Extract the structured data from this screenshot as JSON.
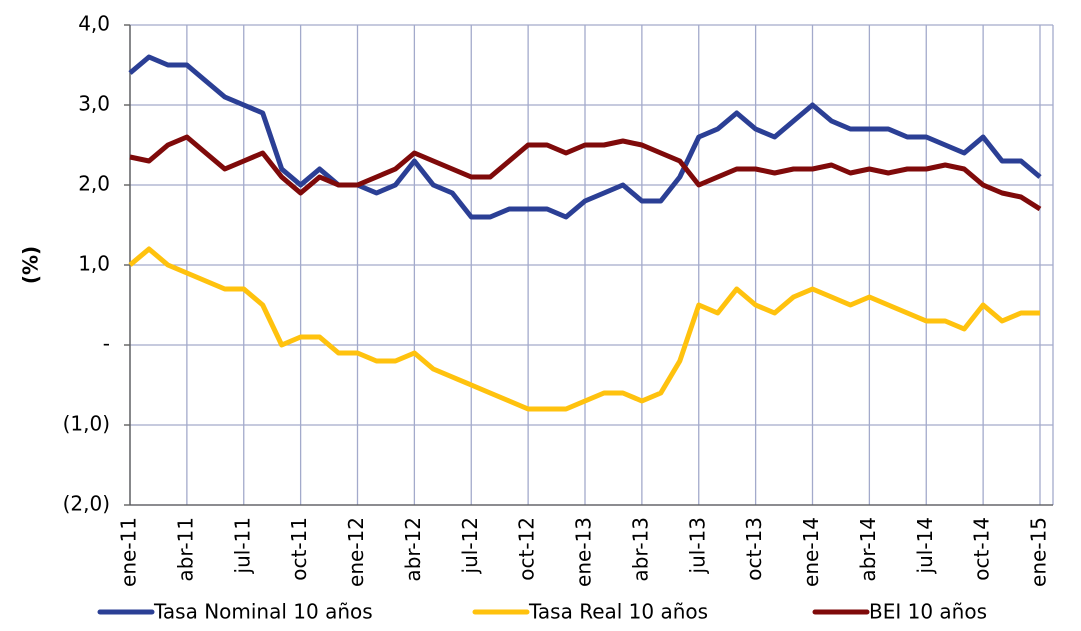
{
  "chart_data": {
    "type": "line",
    "y_label": "(%)",
    "categories": [
      "ene-11",
      null,
      null,
      "abr-11",
      null,
      null,
      "jul-11",
      null,
      null,
      "oct-11",
      null,
      null,
      "ene-12",
      null,
      null,
      "abr-12",
      null,
      null,
      "jul-12",
      null,
      null,
      "oct-12",
      null,
      null,
      "ene-13",
      null,
      null,
      "abr-13",
      null,
      null,
      "jul-13",
      null,
      null,
      "oct-13",
      null,
      null,
      "ene-14",
      null,
      null,
      "abr-14",
      null,
      null,
      "jul-14",
      null,
      null,
      "oct-14",
      null,
      null,
      "ene-15"
    ],
    "series": [
      {
        "name": "Tasa Nominal 10 años",
        "color": "#2b3f95",
        "values": [
          3.4,
          3.6,
          3.5,
          3.5,
          3.3,
          3.1,
          3.0,
          2.9,
          2.2,
          2.0,
          2.2,
          2.0,
          2.0,
          1.9,
          2.0,
          2.3,
          2.0,
          1.9,
          1.6,
          1.6,
          1.7,
          1.7,
          1.7,
          1.6,
          1.8,
          1.9,
          2.0,
          1.8,
          1.8,
          2.1,
          2.6,
          2.7,
          2.9,
          2.7,
          2.6,
          2.8,
          3.0,
          2.8,
          2.7,
          2.7,
          2.7,
          2.6,
          2.6,
          2.5,
          2.4,
          2.6,
          2.3,
          2.3,
          2.1
        ]
      },
      {
        "name": "Tasa Real 10 años",
        "color": "#ffc20e",
        "values": [
          1.0,
          1.2,
          1.0,
          0.9,
          0.8,
          0.7,
          0.7,
          0.5,
          0.0,
          0.1,
          0.1,
          -0.1,
          -0.1,
          -0.2,
          -0.2,
          -0.1,
          -0.3,
          -0.4,
          -0.5,
          -0.6,
          -0.7,
          -0.8,
          -0.8,
          -0.8,
          -0.7,
          -0.6,
          -0.6,
          -0.7,
          -0.6,
          -0.2,
          0.5,
          0.4,
          0.7,
          0.5,
          0.4,
          0.6,
          0.7,
          0.6,
          0.5,
          0.6,
          0.5,
          0.4,
          0.3,
          0.3,
          0.2,
          0.5,
          0.3,
          0.4,
          0.4
        ]
      },
      {
        "name": "BEI 10 años",
        "color": "#7f0a0a",
        "values": [
          2.35,
          2.3,
          2.5,
          2.6,
          2.4,
          2.2,
          2.3,
          2.4,
          2.1,
          1.9,
          2.1,
          2.0,
          2.0,
          2.1,
          2.2,
          2.4,
          2.3,
          2.2,
          2.1,
          2.1,
          2.3,
          2.5,
          2.5,
          2.4,
          2.5,
          2.5,
          2.55,
          2.5,
          2.4,
          2.3,
          2.0,
          2.1,
          2.2,
          2.2,
          2.15,
          2.2,
          2.2,
          2.25,
          2.15,
          2.2,
          2.15,
          2.2,
          2.2,
          2.25,
          2.2,
          2.0,
          1.9,
          1.85,
          1.7
        ]
      }
    ],
    "ylim": [
      -2,
      4
    ],
    "yticks": [
      {
        "value": 4,
        "label": "4,0"
      },
      {
        "value": 3,
        "label": "3,0"
      },
      {
        "value": 2,
        "label": "2,0"
      },
      {
        "value": 1,
        "label": "1,0"
      },
      {
        "value": 0,
        "label": "-"
      },
      {
        "value": -1,
        "label": "(1,0)"
      },
      {
        "value": -2,
        "label": "(2,0)"
      }
    ],
    "grid": true,
    "legend": "bottom"
  }
}
